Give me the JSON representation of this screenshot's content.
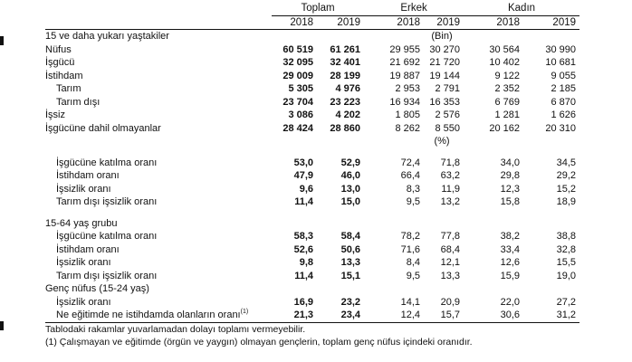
{
  "headers": {
    "groups": [
      "Toplam",
      "Erkek",
      "Kadın"
    ],
    "years": [
      "2018",
      "2019",
      "2018",
      "2019",
      "2018",
      "2019"
    ]
  },
  "section1": {
    "title": "15 ve daha yukarı yaştakiler",
    "unit": "(Bin)",
    "rows": [
      {
        "label": "Nüfus",
        "values": [
          "60 519",
          "61 261",
          "29 955",
          "30 270",
          "30 564",
          "30 990"
        ]
      },
      {
        "label": "İşgücü",
        "values": [
          "32 095",
          "32 401",
          "21 692",
          "21 720",
          "10 402",
          "10 681"
        ]
      },
      {
        "label": "İstihdam",
        "values": [
          "29 009",
          "28 199",
          "19 887",
          "19 144",
          "9 122",
          "9 055"
        ]
      },
      {
        "label": "Tarım",
        "values": [
          "5 305",
          "4 976",
          "2 953",
          "2 791",
          "2 352",
          "2 185"
        ]
      },
      {
        "label": "Tarım dışı",
        "values": [
          "23 704",
          "23 223",
          "16 934",
          "16 353",
          "6 769",
          "6 870"
        ]
      },
      {
        "label": "İşsiz",
        "values": [
          "3 086",
          "4 202",
          "1 805",
          "2 576",
          "1 281",
          "1 626"
        ]
      },
      {
        "label": "İşgücüne dahil olmayanlar",
        "values": [
          "28 424",
          "28 860",
          "8 262",
          "8 550",
          "20 162",
          "20 310"
        ]
      }
    ]
  },
  "section2": {
    "unit": "(%)",
    "rows": [
      {
        "label": "İşgücüne katılma oranı",
        "values": [
          "53,0",
          "52,9",
          "72,4",
          "71,8",
          "34,0",
          "34,5"
        ]
      },
      {
        "label": "İstihdam oranı",
        "values": [
          "47,9",
          "46,0",
          "66,4",
          "63,2",
          "29,8",
          "29,2"
        ]
      },
      {
        "label": "İşsizlik oranı",
        "values": [
          "9,6",
          "13,0",
          "8,3",
          "11,9",
          "12,3",
          "15,2"
        ]
      },
      {
        "label": "Tarım dışı işsizlik oranı",
        "values": [
          "11,4",
          "15,0",
          "9,5",
          "13,2",
          "15,8",
          "18,9"
        ]
      }
    ]
  },
  "section3": {
    "title": "15-64 yaş grubu",
    "rows": [
      {
        "label": "İşgücüne katılma oranı",
        "values": [
          "58,3",
          "58,4",
          "78,2",
          "77,8",
          "38,2",
          "38,8"
        ]
      },
      {
        "label": "İstihdam oranı",
        "values": [
          "52,6",
          "50,6",
          "71,6",
          "68,4",
          "33,4",
          "32,8"
        ]
      },
      {
        "label": "İşsizlik oranı",
        "values": [
          "9,8",
          "13,3",
          "8,4",
          "12,1",
          "12,6",
          "15,5"
        ]
      },
      {
        "label": "Tarım dışı işsizlik oranı",
        "values": [
          "11,4",
          "15,1",
          "9,5",
          "13,3",
          "15,9",
          "19,0"
        ]
      }
    ]
  },
  "section4": {
    "title": "Genç nüfus (15-24 yaş)",
    "rows": [
      {
        "label": "İşsizlik oranı",
        "values": [
          "16,9",
          "23,2",
          "14,1",
          "20,9",
          "22,0",
          "27,2"
        ]
      },
      {
        "label": "Ne eğitimde ne istihdamda olanların oranı",
        "sup": "(1)",
        "values": [
          "21,3",
          "23,4",
          "12,4",
          "15,7",
          "30,6",
          "31,2"
        ]
      }
    ]
  },
  "notes": [
    "Tablodaki rakamlar yuvarlamadan dolayı toplamı vermeyebilir.",
    "(1) Çalışmayan ve eğitimde (örgün ve yaygın) olmayan gençlerin, toplam genç nüfus içindeki oranıdır."
  ]
}
